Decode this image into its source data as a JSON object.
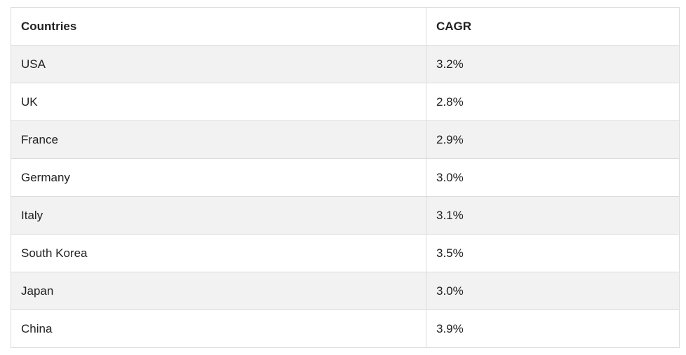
{
  "table": {
    "header": [
      "Countries",
      "CAGR"
    ],
    "rows": [
      [
        "USA",
        "3.2%"
      ],
      [
        "UK",
        "2.8%"
      ],
      [
        "France",
        "2.9%"
      ],
      [
        "Germany",
        "3.0%"
      ],
      [
        "Italy",
        "3.1%"
      ],
      [
        "South Korea",
        "3.5%"
      ],
      [
        "Japan",
        "3.0%"
      ],
      [
        "China",
        "3.9%"
      ]
    ]
  }
}
